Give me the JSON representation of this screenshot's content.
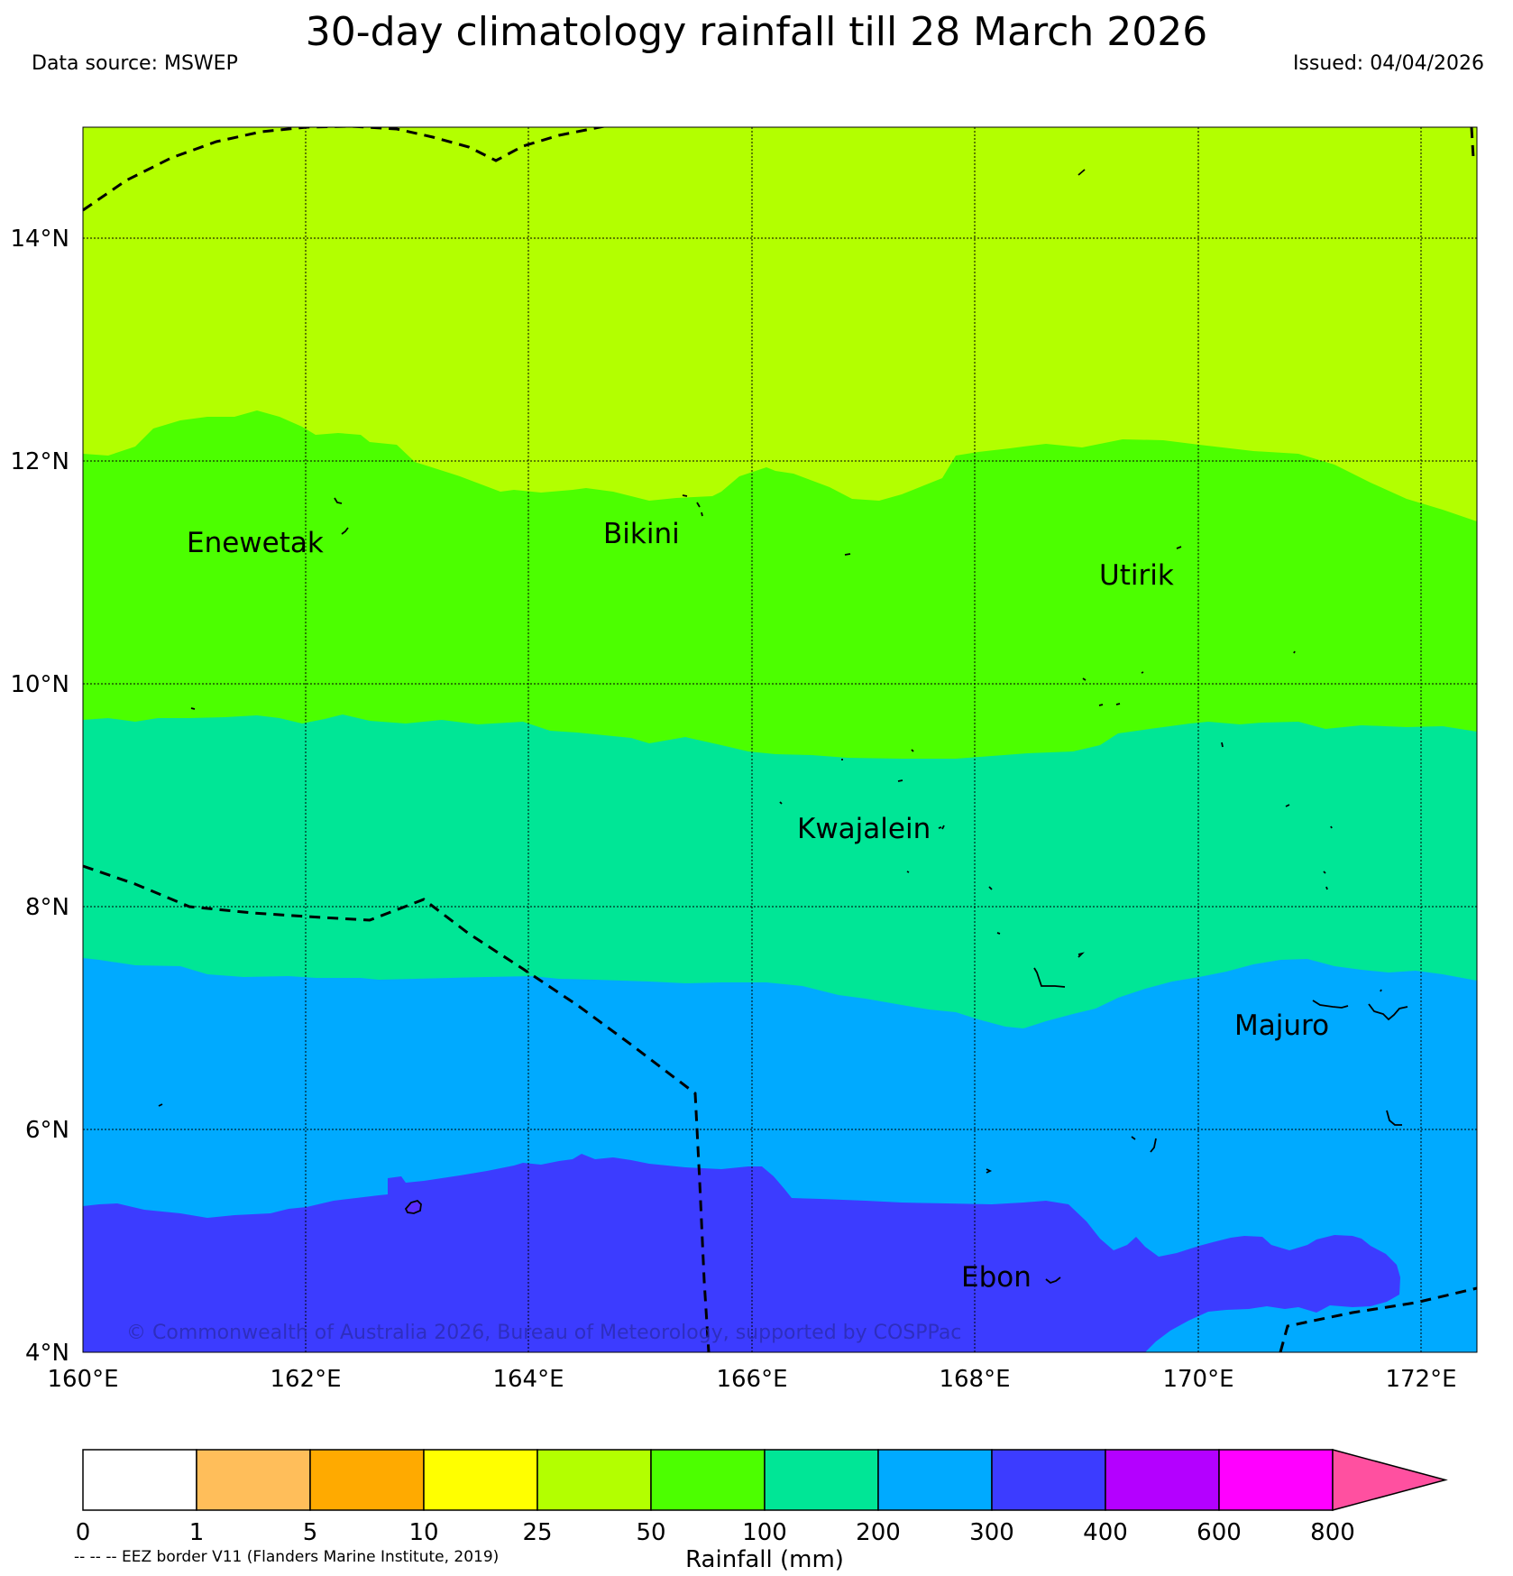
{
  "header": {
    "title": "30-day climatology rainfall till 28 March 2026",
    "data_source": "Data source: MSWEP",
    "issued": "Issued: 04/04/2026"
  },
  "map": {
    "lon_range": [
      160,
      172.5
    ],
    "lat_range": [
      4,
      15
    ],
    "lon_ticks": [
      "160°E",
      "162°E",
      "164°E",
      "166°E",
      "168°E",
      "170°E",
      "172°E"
    ],
    "lat_ticks": [
      "4°N",
      "6°N",
      "8°N",
      "10°N",
      "12°N",
      "14°N"
    ],
    "places": [
      {
        "name": "Enewetak",
        "lon": 161.35,
        "lat": 11.3
      },
      {
        "name": "Bikini",
        "lon": 165.2,
        "lat": 11.45
      },
      {
        "name": "Utirik",
        "lon": 169.5,
        "lat": 11.0
      },
      {
        "name": "Kwajalein",
        "lon": 167.3,
        "lat": 8.7
      },
      {
        "name": "Majuro",
        "lon": 170.8,
        "lat": 6.9
      },
      {
        "name": "Ebon",
        "lon": 168.6,
        "lat": 4.6
      }
    ],
    "copyright": "© Commonwealth of Australia 2026, Bureau of Meteorology, supported by COSPPac",
    "colors": {
      "band_25_50": "#b3ff00",
      "band_50_100": "#4cff00",
      "band_100_200": "#00e696",
      "band_200_300": "#00aaff",
      "band_300_400": "#3c3cff"
    }
  },
  "colorbar": {
    "ticks": [
      "0",
      "1",
      "5",
      "10",
      "25",
      "50",
      "100",
      "200",
      "300",
      "400",
      "600",
      "800"
    ],
    "colors": [
      "#ffffff",
      "#ffbe5a",
      "#ffaa00",
      "#ffff00",
      "#b3ff00",
      "#4cff00",
      "#00e696",
      "#00aaff",
      "#3c3cff",
      "#b400ff",
      "#ff00ff"
    ],
    "extend_color": "#ff50a0",
    "label": "Rainfall (mm)"
  },
  "footnote": "-- -- -- EEZ border V11 (Flanders Marine Institute, 2019)"
}
